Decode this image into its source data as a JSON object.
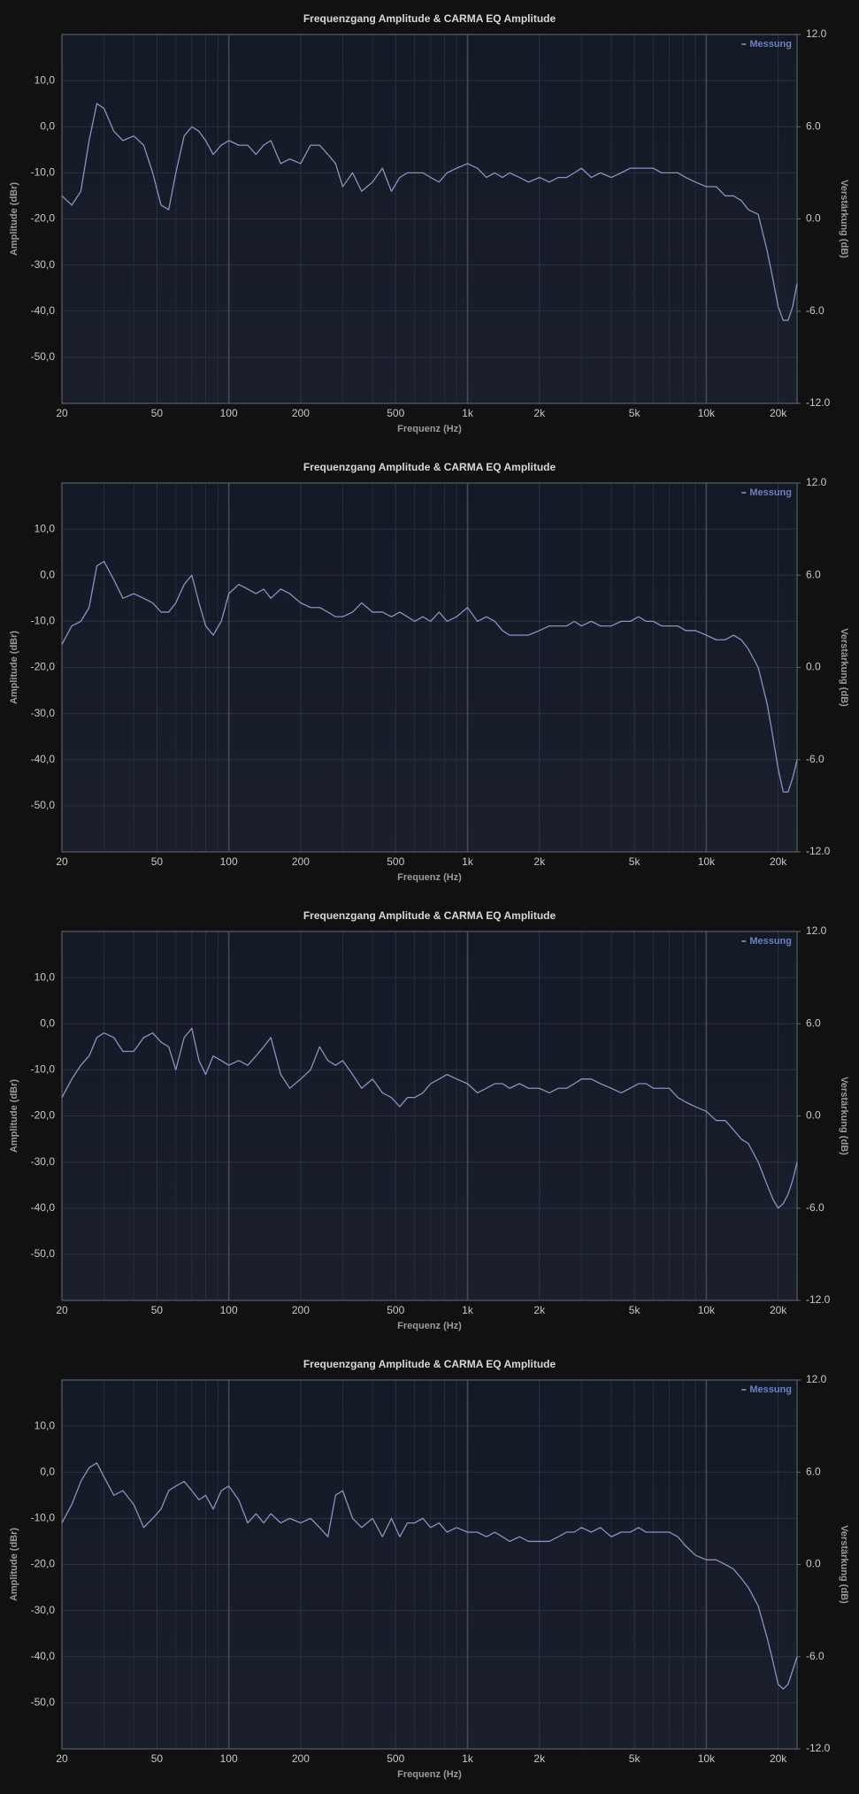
{
  "chart_data": [
    {
      "type": "line",
      "title": "Frequenzgang Amplitude & CARMA EQ Amplitude",
      "xlabel": "Frequenz (Hz)",
      "ylabel": "Amplitude (dBr)",
      "y2label": "Verstärkung (dB)",
      "xscale": "log",
      "grid": true,
      "legend": "upper right",
      "xlim": [
        20,
        24000
      ],
      "xticks": [
        20,
        50,
        100,
        200,
        500,
        {
          "value": 1000,
          "label": "1k"
        },
        {
          "value": 2000,
          "label": "2k"
        },
        {
          "value": 5000,
          "label": "5k"
        },
        {
          "value": 10000,
          "label": "10k"
        },
        {
          "value": 20000,
          "label": "20k"
        }
      ],
      "xminorticks": [
        30,
        40,
        60,
        70,
        80,
        90,
        300,
        400,
        600,
        700,
        800,
        900,
        3000,
        4000,
        6000,
        7000,
        8000,
        9000
      ],
      "ylim": [
        -60,
        20
      ],
      "yticks": [
        {
          "value": 10,
          "label": "10,0"
        },
        {
          "value": 0,
          "label": "0,0"
        },
        {
          "value": -10,
          "label": "-10,0"
        },
        {
          "value": -20,
          "label": "-20,0"
        },
        {
          "value": -30,
          "label": "-30,0"
        },
        {
          "value": -40,
          "label": "-40,0"
        },
        {
          "value": -50,
          "label": "-50,0"
        }
      ],
      "y2lim": [
        -12,
        12
      ],
      "y2ticks": [
        {
          "value": 12,
          "label": "12.0"
        },
        {
          "value": 6,
          "label": "6.0"
        },
        {
          "value": 0,
          "label": "0.0"
        },
        {
          "value": -6,
          "label": "-6.0"
        },
        {
          "value": -12,
          "label": "-12.0"
        }
      ],
      "x": [
        20,
        22,
        24,
        26,
        28,
        30,
        33,
        36,
        40,
        44,
        48,
        52,
        56,
        60,
        65,
        70,
        75,
        80,
        86,
        93,
        100,
        110,
        120,
        130,
        140,
        150,
        165,
        180,
        200,
        220,
        240,
        260,
        280,
        300,
        330,
        360,
        400,
        440,
        480,
        520,
        560,
        600,
        650,
        700,
        760,
        820,
        900,
        1000,
        1100,
        1200,
        1300,
        1400,
        1500,
        1650,
        1800,
        2000,
        2200,
        2400,
        2600,
        2800,
        3000,
        3300,
        3600,
        4000,
        4400,
        4800,
        5200,
        5600,
        6000,
        6500,
        7000,
        7600,
        8200,
        9000,
        10000,
        11000,
        12000,
        13000,
        14000,
        15000,
        16500,
        18000,
        19000,
        20000,
        21000,
        22000,
        23000,
        24000
      ],
      "series": [
        {
          "name": "Messung",
          "color": "#8a92c4",
          "values": [
            -15,
            -17,
            -14,
            -3,
            5,
            4,
            -1,
            -3,
            -2,
            -4,
            -10,
            -17,
            -18,
            -10,
            -2,
            0,
            -1,
            -3,
            -6,
            -4,
            -3,
            -4,
            -4,
            -6,
            -4,
            -3,
            -8,
            -7,
            -8,
            -4,
            -4,
            -6,
            -8,
            -13,
            -10,
            -14,
            -12,
            -9,
            -14,
            -11,
            -10,
            -10,
            -10,
            -11,
            -12,
            -10,
            -9,
            -8,
            -9,
            -11,
            -10,
            -11,
            -10,
            -11,
            -12,
            -11,
            -12,
            -11,
            -11,
            -10,
            -9,
            -11,
            -10,
            -11,
            -10,
            -9,
            -9,
            -9,
            -9,
            -10,
            -10,
            -10,
            -11,
            -12,
            -13,
            -13,
            -15,
            -15,
            -16,
            -18,
            -19,
            -27,
            -33,
            -39,
            -42,
            -42,
            -39,
            -34
          ]
        }
      ]
    },
    {
      "type": "line",
      "title": "Frequenzgang Amplitude & CARMA EQ Amplitude",
      "xlabel": "Frequenz (Hz)",
      "ylabel": "Amplitude (dBr)",
      "y2label": "Verstärkung (dB)",
      "xscale": "log",
      "grid": true,
      "legend": "upper right",
      "xlim": [
        20,
        24000
      ],
      "xticks": [
        20,
        50,
        100,
        200,
        500,
        {
          "value": 1000,
          "label": "1k"
        },
        {
          "value": 2000,
          "label": "2k"
        },
        {
          "value": 5000,
          "label": "5k"
        },
        {
          "value": 10000,
          "label": "10k"
        },
        {
          "value": 20000,
          "label": "20k"
        }
      ],
      "xminorticks": [
        30,
        40,
        60,
        70,
        80,
        90,
        300,
        400,
        600,
        700,
        800,
        900,
        3000,
        4000,
        6000,
        7000,
        8000,
        9000
      ],
      "ylim": [
        -60,
        20
      ],
      "yticks": [
        {
          "value": 10,
          "label": "10,0"
        },
        {
          "value": 0,
          "label": "0,0"
        },
        {
          "value": -10,
          "label": "-10,0"
        },
        {
          "value": -20,
          "label": "-20,0"
        },
        {
          "value": -30,
          "label": "-30,0"
        },
        {
          "value": -40,
          "label": "-40,0"
        },
        {
          "value": -50,
          "label": "-50,0"
        }
      ],
      "y2lim": [
        -12,
        12
      ],
      "y2ticks": [
        {
          "value": 12,
          "label": "12.0"
        },
        {
          "value": 6,
          "label": "6.0"
        },
        {
          "value": 0,
          "label": "0.0"
        },
        {
          "value": -6,
          "label": "-6.0"
        },
        {
          "value": -12,
          "label": "-12.0"
        }
      ],
      "x": [
        20,
        22,
        24,
        26,
        28,
        30,
        33,
        36,
        40,
        44,
        48,
        52,
        56,
        60,
        65,
        70,
        75,
        80,
        86,
        93,
        100,
        110,
        120,
        130,
        140,
        150,
        165,
        180,
        200,
        220,
        240,
        260,
        280,
        300,
        330,
        360,
        400,
        440,
        480,
        520,
        560,
        600,
        650,
        700,
        760,
        820,
        900,
        1000,
        1100,
        1200,
        1300,
        1400,
        1500,
        1650,
        1800,
        2000,
        2200,
        2400,
        2600,
        2800,
        3000,
        3300,
        3600,
        4000,
        4400,
        4800,
        5200,
        5600,
        6000,
        6500,
        7000,
        7600,
        8200,
        9000,
        10000,
        11000,
        12000,
        13000,
        14000,
        15000,
        16500,
        18000,
        19000,
        20000,
        21000,
        22000,
        23000,
        24000
      ],
      "series": [
        {
          "name": "Messung",
          "color": "#8a92c4",
          "values": [
            -15,
            -11,
            -10,
            -7,
            2,
            3,
            -1,
            -5,
            -4,
            -5,
            -6,
            -8,
            -8,
            -6,
            -2,
            0,
            -6,
            -11,
            -13,
            -10,
            -4,
            -2,
            -3,
            -4,
            -3,
            -5,
            -3,
            -4,
            -6,
            -7,
            -7,
            -8,
            -9,
            -9,
            -8,
            -6,
            -8,
            -8,
            -9,
            -8,
            -9,
            -10,
            -9,
            -10,
            -8,
            -10,
            -9,
            -7,
            -10,
            -9,
            -10,
            -12,
            -13,
            -13,
            -13,
            -12,
            -11,
            -11,
            -11,
            -10,
            -11,
            -10,
            -11,
            -11,
            -10,
            -10,
            -9,
            -10,
            -10,
            -11,
            -11,
            -11,
            -12,
            -12,
            -13,
            -14,
            -14,
            -13,
            -14,
            -16,
            -20,
            -28,
            -35,
            -42,
            -47,
            -47,
            -44,
            -40
          ]
        }
      ]
    },
    {
      "type": "line",
      "title": "Frequenzgang Amplitude & CARMA EQ Amplitude",
      "xlabel": "Frequenz (Hz)",
      "ylabel": "Amplitude (dBr)",
      "y2label": "Verstärkung (dB)",
      "xscale": "log",
      "grid": true,
      "legend": "upper right",
      "xlim": [
        20,
        24000
      ],
      "xticks": [
        20,
        50,
        100,
        200,
        500,
        {
          "value": 1000,
          "label": "1k"
        },
        {
          "value": 2000,
          "label": "2k"
        },
        {
          "value": 5000,
          "label": "5k"
        },
        {
          "value": 10000,
          "label": "10k"
        },
        {
          "value": 20000,
          "label": "20k"
        }
      ],
      "xminorticks": [
        30,
        40,
        60,
        70,
        80,
        90,
        300,
        400,
        600,
        700,
        800,
        900,
        3000,
        4000,
        6000,
        7000,
        8000,
        9000
      ],
      "ylim": [
        -60,
        20
      ],
      "yticks": [
        {
          "value": 10,
          "label": "10,0"
        },
        {
          "value": 0,
          "label": "0,0"
        },
        {
          "value": -10,
          "label": "-10,0"
        },
        {
          "value": -20,
          "label": "-20,0"
        },
        {
          "value": -30,
          "label": "-30,0"
        },
        {
          "value": -40,
          "label": "-40,0"
        },
        {
          "value": -50,
          "label": "-50,0"
        }
      ],
      "y2lim": [
        -12,
        12
      ],
      "y2ticks": [
        {
          "value": 12,
          "label": "12.0"
        },
        {
          "value": 6,
          "label": "6.0"
        },
        {
          "value": 0,
          "label": "0.0"
        },
        {
          "value": -6,
          "label": "-6.0"
        },
        {
          "value": -12,
          "label": "-12.0"
        }
      ],
      "x": [
        20,
        22,
        24,
        26,
        28,
        30,
        33,
        36,
        40,
        44,
        48,
        52,
        56,
        60,
        65,
        70,
        75,
        80,
        86,
        93,
        100,
        110,
        120,
        130,
        140,
        150,
        165,
        180,
        200,
        220,
        240,
        260,
        280,
        300,
        330,
        360,
        400,
        440,
        480,
        520,
        560,
        600,
        650,
        700,
        760,
        820,
        900,
        1000,
        1100,
        1200,
        1300,
        1400,
        1500,
        1650,
        1800,
        2000,
        2200,
        2400,
        2600,
        2800,
        3000,
        3300,
        3600,
        4000,
        4400,
        4800,
        5200,
        5600,
        6000,
        6500,
        7000,
        7600,
        8200,
        9000,
        10000,
        11000,
        12000,
        13000,
        14000,
        15000,
        16500,
        18000,
        19000,
        20000,
        21000,
        22000,
        23000,
        24000
      ],
      "series": [
        {
          "name": "Messung",
          "color": "#8a92c4",
          "values": [
            -16,
            -12,
            -9,
            -7,
            -3,
            -2,
            -3,
            -6,
            -6,
            -3,
            -2,
            -4,
            -5,
            -10,
            -3,
            -1,
            -8,
            -11,
            -7,
            -8,
            -9,
            -8,
            -9,
            -7,
            -5,
            -3,
            -11,
            -14,
            -12,
            -10,
            -5,
            -8,
            -9,
            -8,
            -11,
            -14,
            -12,
            -15,
            -16,
            -18,
            -16,
            -16,
            -15,
            -13,
            -12,
            -11,
            -12,
            -13,
            -15,
            -14,
            -13,
            -13,
            -14,
            -13,
            -14,
            -14,
            -15,
            -14,
            -14,
            -13,
            -12,
            -12,
            -13,
            -14,
            -15,
            -14,
            -13,
            -13,
            -14,
            -14,
            -14,
            -16,
            -17,
            -18,
            -19,
            -21,
            -21,
            -23,
            -25,
            -26,
            -30,
            -35,
            -38,
            -40,
            -39,
            -37,
            -34,
            -30
          ]
        }
      ]
    },
    {
      "type": "line",
      "title": "Frequenzgang Amplitude & CARMA EQ Amplitude",
      "xlabel": "Frequenz (Hz)",
      "ylabel": "Amplitude (dBr)",
      "y2label": "Verstärkung (dB)",
      "xscale": "log",
      "grid": true,
      "legend": "upper right",
      "xlim": [
        20,
        24000
      ],
      "xticks": [
        20,
        50,
        100,
        200,
        500,
        {
          "value": 1000,
          "label": "1k"
        },
        {
          "value": 2000,
          "label": "2k"
        },
        {
          "value": 5000,
          "label": "5k"
        },
        {
          "value": 10000,
          "label": "10k"
        },
        {
          "value": 20000,
          "label": "20k"
        }
      ],
      "xminorticks": [
        30,
        40,
        60,
        70,
        80,
        90,
        300,
        400,
        600,
        700,
        800,
        900,
        3000,
        4000,
        6000,
        7000,
        8000,
        9000
      ],
      "ylim": [
        -60,
        20
      ],
      "yticks": [
        {
          "value": 10,
          "label": "10,0"
        },
        {
          "value": 0,
          "label": "0,0"
        },
        {
          "value": -10,
          "label": "-10,0"
        },
        {
          "value": -20,
          "label": "-20,0"
        },
        {
          "value": -30,
          "label": "-30,0"
        },
        {
          "value": -40,
          "label": "-40,0"
        },
        {
          "value": -50,
          "label": "-50,0"
        }
      ],
      "y2lim": [
        -12,
        12
      ],
      "y2ticks": [
        {
          "value": 12,
          "label": "12.0"
        },
        {
          "value": 6,
          "label": "6.0"
        },
        {
          "value": 0,
          "label": "0.0"
        },
        {
          "value": -6,
          "label": "-6.0"
        },
        {
          "value": -12,
          "label": "-12.0"
        }
      ],
      "x": [
        20,
        22,
        24,
        26,
        28,
        30,
        33,
        36,
        40,
        44,
        48,
        52,
        56,
        60,
        65,
        70,
        75,
        80,
        86,
        93,
        100,
        110,
        120,
        130,
        140,
        150,
        165,
        180,
        200,
        220,
        240,
        260,
        280,
        300,
        330,
        360,
        400,
        440,
        480,
        520,
        560,
        600,
        650,
        700,
        760,
        820,
        900,
        1000,
        1100,
        1200,
        1300,
        1400,
        1500,
        1650,
        1800,
        2000,
        2200,
        2400,
        2600,
        2800,
        3000,
        3300,
        3600,
        4000,
        4400,
        4800,
        5200,
        5600,
        6000,
        6500,
        7000,
        7600,
        8200,
        9000,
        10000,
        11000,
        12000,
        13000,
        14000,
        15000,
        16500,
        18000,
        19000,
        20000,
        21000,
        22000,
        23000,
        24000
      ],
      "series": [
        {
          "name": "Messung",
          "color": "#8a92c4",
          "values": [
            -11,
            -7,
            -2,
            1,
            2,
            -1,
            -5,
            -4,
            -7,
            -12,
            -10,
            -8,
            -4,
            -3,
            -2,
            -4,
            -6,
            -5,
            -8,
            -4,
            -3,
            -6,
            -11,
            -9,
            -11,
            -9,
            -11,
            -10,
            -11,
            -10,
            -12,
            -14,
            -5,
            -4,
            -10,
            -12,
            -10,
            -14,
            -10,
            -14,
            -11,
            -11,
            -10,
            -12,
            -11,
            -13,
            -12,
            -13,
            -13,
            -14,
            -13,
            -14,
            -15,
            -14,
            -15,
            -15,
            -15,
            -14,
            -13,
            -13,
            -12,
            -13,
            -12,
            -14,
            -13,
            -13,
            -12,
            -13,
            -13,
            -13,
            -13,
            -14,
            -16,
            -18,
            -19,
            -19,
            -20,
            -21,
            -23,
            -25,
            -29,
            -36,
            -41,
            -46,
            -47,
            -46,
            -43,
            -40
          ]
        }
      ]
    }
  ]
}
